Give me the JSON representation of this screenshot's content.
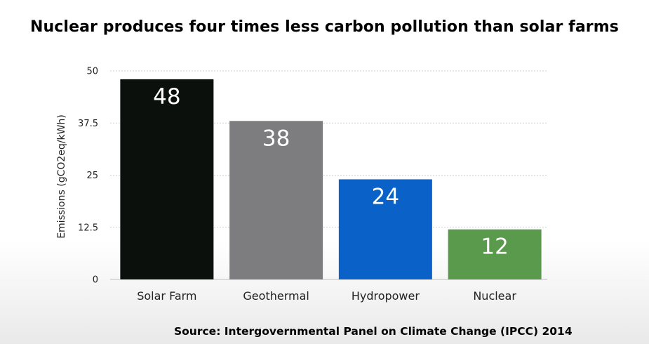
{
  "chart_data": {
    "type": "bar",
    "title": "Nuclear produces four times less carbon pollution than solar farms",
    "categories": [
      "Solar Farm",
      "Geothermal",
      "Hydropower",
      "Nuclear"
    ],
    "values": [
      48,
      38,
      24,
      12
    ],
    "value_labels": [
      "48",
      "38",
      "24",
      "12"
    ],
    "colors": [
      "#0b100d",
      "#7d7d7f",
      "#0a62c8",
      "#5a9a4c"
    ],
    "xlabel": "",
    "ylabel": "Emissions (gCO2eq/kWh)",
    "ylim": [
      0,
      50
    ],
    "yticks": [
      0,
      12.5,
      25,
      37.5,
      50
    ],
    "ytick_labels": [
      "0",
      "12.5",
      "25",
      "37.5",
      "50"
    ],
    "grid": true,
    "source": "Source: Intergovernmental Panel on Climate Change (IPCC) 2014"
  }
}
